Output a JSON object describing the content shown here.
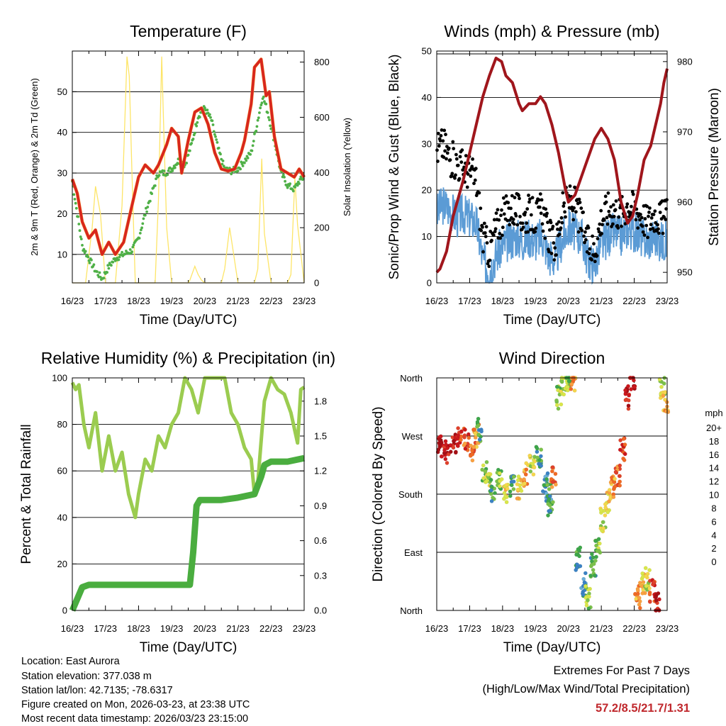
{
  "chart_data": [
    {
      "type": "line",
      "title": "Temperature (F)",
      "xlabel": "Time (Day/UTC)",
      "ylabel": "2m & 9m T (Red, Orange) & 2m Td (Green)",
      "ylabel_right": "Solar Insolation (Yellow)",
      "x_ticks": [
        "16/23",
        "17/23",
        "18/23",
        "19/23",
        "20/23",
        "21/23",
        "22/23",
        "23/23"
      ],
      "xlim": [
        0,
        7
      ],
      "ylim": [
        3,
        60
      ],
      "y_ticks": [
        10,
        20,
        30,
        40,
        50
      ],
      "ylim_right": [
        0,
        840
      ],
      "y_ticks_right": [
        0,
        200,
        400,
        600,
        800
      ],
      "colors": {
        "temp2m": "#d7261e",
        "temp9m": "#f47d20",
        "dewpoint": "#4fb047",
        "solar": "#fde568"
      },
      "series": [
        {
          "name": "2m T",
          "x": [
            0,
            0.15,
            0.3,
            0.5,
            0.7,
            0.9,
            1.1,
            1.3,
            1.55,
            1.8,
            2.0,
            2.2,
            2.45,
            2.6,
            2.7,
            2.85,
            3.0,
            3.2,
            3.3,
            3.5,
            3.7,
            3.9,
            4.1,
            4.3,
            4.5,
            4.7,
            4.9,
            5.1,
            5.2,
            5.4,
            5.5,
            5.7,
            5.85,
            5.95,
            6.1,
            6.3,
            6.5,
            6.7,
            6.85,
            7.0
          ],
          "values": [
            28.5,
            25,
            18,
            14,
            16,
            10,
            13,
            10,
            13,
            22,
            29,
            32,
            30,
            32,
            34,
            37,
            41,
            39,
            30,
            38,
            45,
            46,
            42,
            35,
            31,
            30.5,
            31,
            35,
            38,
            47,
            56,
            58,
            49,
            50,
            39,
            31,
            30,
            29,
            31,
            29
          ]
        },
        {
          "name": "2m Td",
          "x": [
            0,
            0.15,
            0.3,
            0.5,
            0.7,
            0.9,
            1.1,
            1.3,
            1.55,
            1.8,
            2.0,
            2.2,
            2.4,
            2.6,
            2.8,
            3.0,
            3.2,
            3.4,
            3.6,
            3.8,
            4.0,
            4.2,
            4.4,
            4.6,
            4.8,
            5.0,
            5.2,
            5.4,
            5.6,
            5.75,
            5.9,
            6.1,
            6.3,
            6.5,
            6.7,
            6.85,
            7.0
          ],
          "values": [
            28,
            20,
            12,
            9,
            6,
            4,
            7,
            9,
            10,
            11,
            14,
            20,
            25,
            30,
            30,
            31,
            33,
            32,
            37,
            44,
            46,
            43,
            36,
            31,
            30.5,
            31,
            33,
            35,
            43,
            49,
            45,
            38,
            30,
            27,
            26,
            28,
            29
          ]
        },
        {
          "name": "Solar",
          "axis": "right",
          "x": [
            0,
            0.4,
            0.6,
            0.7,
            0.85,
            1.0,
            1.1,
            1.3,
            1.5,
            1.65,
            1.72,
            1.8,
            1.9,
            2.0,
            2.5,
            2.6,
            2.7,
            2.75,
            2.85,
            3.0,
            3.5,
            3.55,
            3.7,
            3.8,
            3.9,
            4.0,
            4.5,
            4.6,
            4.75,
            4.85,
            5.0,
            5.5,
            5.6,
            5.72,
            5.8,
            6.0,
            6.5,
            6.6,
            6.72,
            6.8,
            7.0
          ],
          "values": [
            0,
            0,
            200,
            350,
            250,
            0,
            0,
            0,
            280,
            820,
            750,
            400,
            0,
            0,
            0,
            300,
            820,
            600,
            200,
            0,
            0,
            10,
            60,
            30,
            10,
            0,
            0,
            50,
            200,
            120,
            0,
            0,
            50,
            450,
            180,
            0,
            0,
            30,
            380,
            210,
            0
          ]
        }
      ]
    },
    {
      "type": "line",
      "title": "Winds (mph) & Pressure (mb)",
      "xlabel": "Time (Day/UTC)",
      "ylabel": "Sonic/Prop Wind & Gust (Blue, Black)",
      "ylabel_right": "Station Pressure (Maroon)",
      "x_ticks": [
        "16/23",
        "17/23",
        "18/23",
        "19/23",
        "20/23",
        "21/23",
        "22/23",
        "23/23"
      ],
      "xlim": [
        0,
        7
      ],
      "ylim": [
        0,
        50
      ],
      "y_ticks": [
        0,
        10,
        20,
        30,
        40,
        50
      ],
      "ylim_right": [
        948.5,
        981.5
      ],
      "y_ticks_right": [
        950,
        960,
        970,
        980
      ],
      "colors": {
        "wind": "#5b9bd5",
        "gust": "#000000",
        "pressure": "#a0161c"
      },
      "series": [
        {
          "name": "Wind",
          "x": [
            0,
            0.2,
            0.4,
            0.6,
            0.8,
            1.0,
            1.2,
            1.4,
            1.6,
            1.8,
            2.0,
            2.2,
            2.4,
            2.6,
            2.8,
            3.0,
            3.2,
            3.4,
            3.6,
            3.8,
            4.0,
            4.2,
            4.4,
            4.6,
            4.8,
            5.0,
            5.2,
            5.4,
            5.6,
            5.8,
            6.0,
            6.2,
            6.4,
            6.6,
            6.8,
            7.0
          ],
          "values": [
            15,
            17,
            16,
            14,
            15,
            14,
            13,
            5,
            3,
            6,
            8,
            9,
            10,
            9,
            10,
            9,
            10,
            6,
            5,
            9,
            12,
            11,
            10,
            5,
            4,
            8,
            10,
            11,
            10,
            12,
            11,
            10,
            9,
            10,
            9,
            9
          ]
        },
        {
          "name": "Gust",
          "x": [
            0,
            0.2,
            0.4,
            0.6,
            0.8,
            1.0,
            1.2,
            1.4,
            1.6,
            1.8,
            2.0,
            2.2,
            2.4,
            2.6,
            2.8,
            3.0,
            3.2,
            3.4,
            3.6,
            3.8,
            4.0,
            4.2,
            4.4,
            4.6,
            4.8,
            5.0,
            5.2,
            5.4,
            5.6,
            5.8,
            6.0,
            6.2,
            6.4,
            6.6,
            6.8,
            7.0
          ],
          "values": [
            29,
            30,
            27,
            26,
            25,
            24,
            22,
            10,
            7,
            12,
            14,
            16,
            16,
            14,
            15,
            14,
            16,
            10,
            8,
            15,
            18,
            17,
            13,
            8,
            7,
            14,
            16,
            16,
            15,
            17,
            16,
            15,
            13,
            15,
            14,
            14
          ]
        },
        {
          "name": "Pressure",
          "axis": "right",
          "x": [
            0,
            0.1,
            0.3,
            0.5,
            0.8,
            1.0,
            1.2,
            1.4,
            1.6,
            1.8,
            1.97,
            2.1,
            2.3,
            2.5,
            2.6,
            2.8,
            3.0,
            3.15,
            3.3,
            3.5,
            3.7,
            3.9,
            4.0,
            4.2,
            4.5,
            4.8,
            5.0,
            5.2,
            5.4,
            5.6,
            5.8,
            5.95,
            6.1,
            6.3,
            6.4,
            6.5,
            6.6,
            6.7,
            6.8,
            6.9,
            7.0
          ],
          "values": [
            950,
            950.5,
            953,
            958,
            963,
            967,
            971,
            975,
            978,
            980.5,
            980,
            978,
            977,
            974,
            973,
            974,
            974,
            975,
            974,
            971,
            967,
            962,
            960,
            961,
            965,
            969,
            970.5,
            969,
            966,
            960,
            957,
            958,
            961,
            966,
            967,
            968,
            970,
            972,
            974,
            977,
            979
          ]
        }
      ]
    },
    {
      "type": "line",
      "title": "Relative Humidity (%) & Precipitation (in)",
      "xlabel": "Time (Day/UTC)",
      "ylabel": "Percent & Total Rainfall",
      "x_ticks": [
        "16/23",
        "17/23",
        "18/23",
        "19/23",
        "20/23",
        "21/23",
        "22/23",
        "23/23"
      ],
      "xlim": [
        0,
        7
      ],
      "ylim": [
        0,
        100
      ],
      "y_ticks": [
        0,
        20,
        40,
        60,
        80,
        100
      ],
      "ylim_right": [
        0,
        2.0
      ],
      "y_ticks_right": [
        "0.0",
        "0.3",
        "0.6",
        "0.9",
        "1.2",
        "1.5",
        "1.8"
      ],
      "colors": {
        "rh": "#9bcc50",
        "precip": "#4aad3f"
      },
      "series": [
        {
          "name": "Relative Humidity",
          "x": [
            0,
            0.1,
            0.2,
            0.35,
            0.5,
            0.7,
            0.9,
            1.1,
            1.3,
            1.5,
            1.7,
            1.9,
            2.0,
            2.2,
            2.4,
            2.6,
            2.8,
            3.0,
            3.2,
            3.4,
            3.6,
            3.8,
            4.0,
            4.2,
            4.4,
            4.6,
            4.8,
            5.0,
            5.2,
            5.4,
            5.5,
            5.6,
            5.8,
            6.0,
            6.2,
            6.4,
            6.6,
            6.8,
            6.9,
            7.0
          ],
          "values": [
            98,
            95,
            97,
            80,
            70,
            85,
            60,
            75,
            60,
            68,
            50,
            40,
            50,
            65,
            60,
            75,
            70,
            80,
            85,
            100,
            95,
            85,
            100,
            100,
            100,
            100,
            85,
            80,
            70,
            65,
            50,
            55,
            90,
            100,
            95,
            93,
            85,
            72,
            95,
            96
          ]
        },
        {
          "name": "Precipitation",
          "axis": "right",
          "x": [
            0,
            0.15,
            0.3,
            0.5,
            1.0,
            2.0,
            3.0,
            3.55,
            3.65,
            3.75,
            3.85,
            4.0,
            4.5,
            5.0,
            5.5,
            5.7,
            5.8,
            6.0,
            6.5,
            7.0
          ],
          "values": [
            0,
            0.1,
            0.2,
            0.22,
            0.22,
            0.22,
            0.22,
            0.22,
            0.5,
            0.9,
            0.95,
            0.95,
            0.95,
            0.97,
            1.0,
            1.15,
            1.25,
            1.28,
            1.28,
            1.31
          ]
        }
      ]
    },
    {
      "type": "scatter",
      "title": "Wind Direction",
      "xlabel": "Time (Day/UTC)",
      "ylabel": "Direction (Colored By Speed)",
      "x_ticks": [
        "16/23",
        "17/23",
        "18/23",
        "19/23",
        "20/23",
        "21/23",
        "22/23",
        "23/23"
      ],
      "xlim": [
        0,
        7
      ],
      "ylim": [
        0,
        360
      ],
      "y_tick_values": [
        0,
        90,
        180,
        270,
        360
      ],
      "y_ticks": [
        "North",
        "East",
        "South",
        "West",
        "North"
      ],
      "colorbar": {
        "title": "mph",
        "labels": [
          "20+",
          "18",
          "16",
          "14",
          "12",
          "10",
          "8",
          "6",
          "4",
          "2",
          "0"
        ],
        "colors": [
          "#a50f15",
          "#cb181d",
          "#e0412b",
          "#f06a25",
          "#f9a040",
          "#f5d64c",
          "#d9e64a",
          "#7cc14a",
          "#3ea64a",
          "#3b82c4",
          "#6baed6",
          "#b8e0f3"
        ]
      },
      "series": [
        {
          "name": "Direction",
          "x": [
            0.1,
            0.3,
            0.5,
            0.7,
            0.9,
            1.1,
            1.2,
            1.3,
            1.45,
            1.55,
            1.7,
            1.9,
            2.1,
            2.3,
            2.5,
            2.7,
            2.9,
            3.1,
            3.3,
            3.4,
            3.45,
            3.55,
            3.7,
            3.85,
            4.0,
            4.15,
            4.3,
            4.45,
            4.6,
            4.75,
            4.9,
            5.05,
            5.2,
            5.35,
            5.5,
            5.65,
            5.8,
            5.95,
            6.1,
            6.25,
            6.4,
            6.55,
            6.7,
            6.85,
            6.95
          ],
          "values": [
            255,
            245,
            260,
            270,
            265,
            250,
            270,
            280,
            215,
            200,
            185,
            200,
            180,
            195,
            190,
            210,
            225,
            240,
            200,
            180,
            165,
            205,
            330,
            350,
            355,
            355,
            80,
            40,
            20,
            70,
            100,
            140,
            170,
            190,
            210,
            250,
            330,
            360,
            20,
            40,
            50,
            30,
            10,
            345,
            320
          ],
          "speeds": [
            20,
            18,
            18,
            16,
            15,
            14,
            12,
            4,
            6,
            8,
            4,
            6,
            10,
            4,
            10,
            12,
            8,
            4,
            2,
            3,
            4,
            14,
            6,
            8,
            6,
            12,
            4,
            2,
            6,
            4,
            6,
            8,
            10,
            12,
            14,
            16,
            18,
            18,
            12,
            10,
            8,
            16,
            18,
            8,
            12
          ]
        }
      ]
    }
  ],
  "info": {
    "location": "Location: East Aurora",
    "elevation": "Station elevation: 377.038 m",
    "latlon": "Station lat/lon: 42.7135; -78.6317",
    "created": "Figure created on Mon, 2026-03-23, at 23:38 UTC",
    "recent": "Most recent data timestamp: 2026/03/23 23:15:00"
  },
  "extremes": {
    "title": "Extremes For Past 7 Days",
    "subtitle": "(High/Low/Max Wind/Total Precipitation)",
    "values": "57.2/8.5/21.7/1.31"
  }
}
